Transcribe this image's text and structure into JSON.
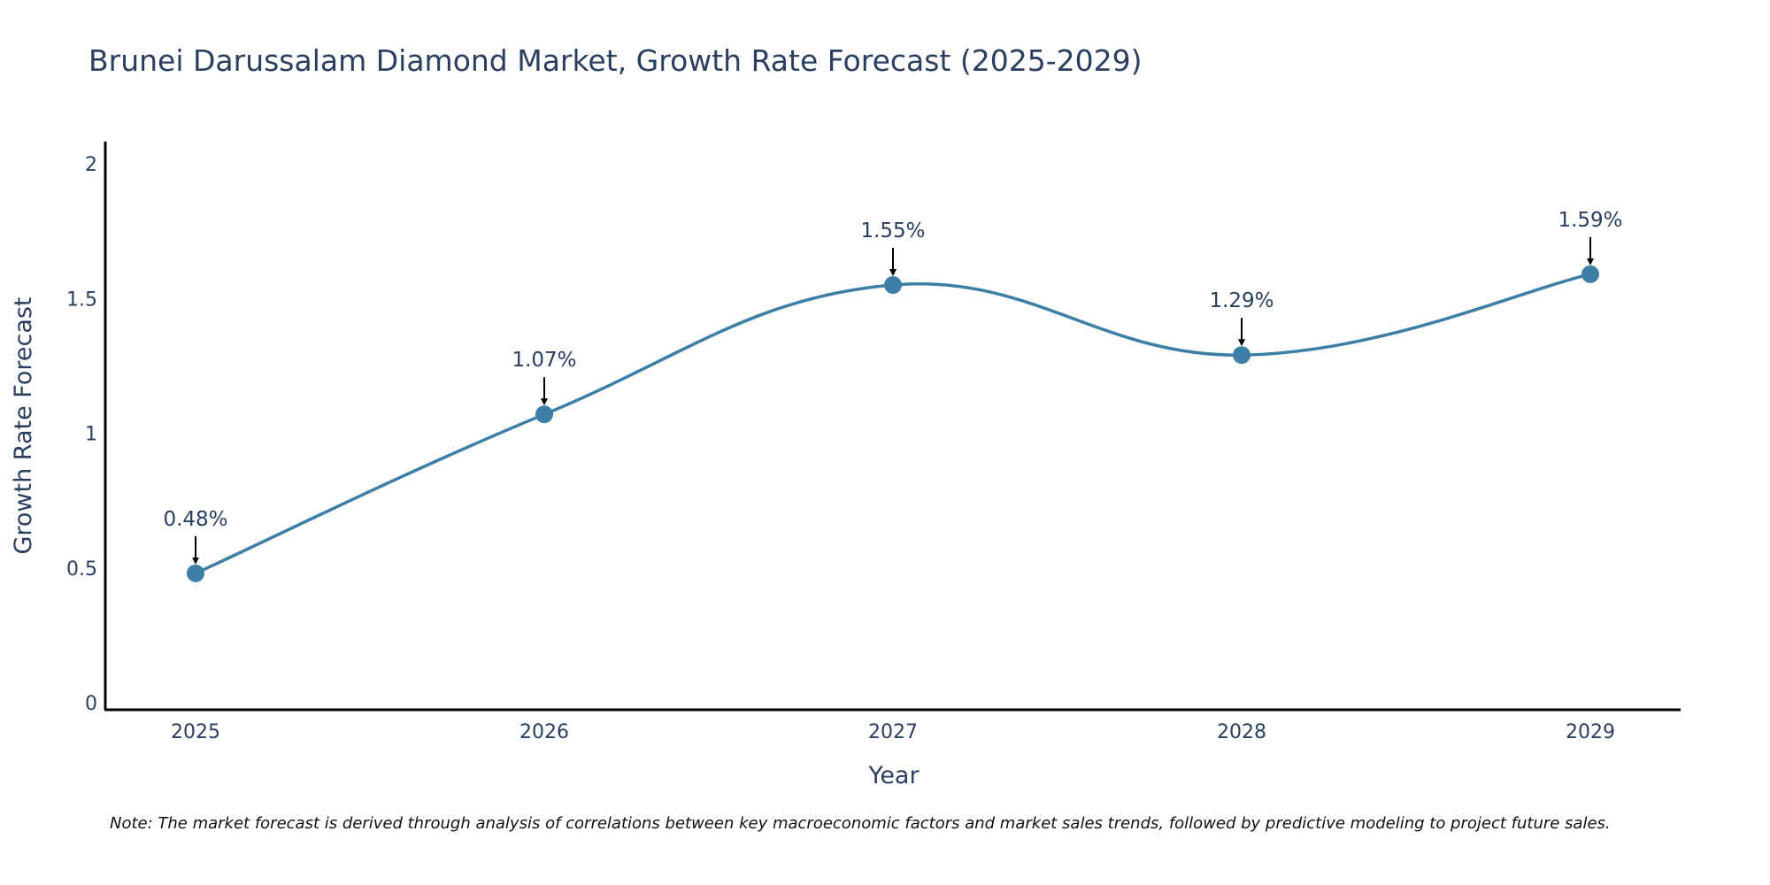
{
  "chart_data": {
    "type": "line",
    "title": "Brunei Darussalam Diamond Market, Growth Rate Forecast (2025-2029)",
    "xlabel": "Year",
    "ylabel": "Growth Rate Forecast",
    "categories": [
      "2025",
      "2026",
      "2027",
      "2028",
      "2029"
    ],
    "values": [
      0.48,
      1.07,
      1.55,
      1.29,
      1.59
    ],
    "data_labels": [
      "0.48%",
      "1.07%",
      "1.55%",
      "1.29%",
      "1.59%"
    ],
    "ylim": [
      0,
      2.1
    ],
    "yticks": [
      0,
      0.5,
      1,
      1.5,
      2
    ],
    "ytick_labels": [
      "0",
      "0.5",
      "1",
      "1.5",
      "2"
    ],
    "line_color": "#3d7ea6",
    "marker_color": "#3d7ea6",
    "text_color": "#2a3f5f",
    "grid": false,
    "smooth": true
  },
  "note": "Note: The market forecast is derived through analysis of correlations between key macroeconomic factors and market sales trends, followed by predictive modeling to project future sales."
}
